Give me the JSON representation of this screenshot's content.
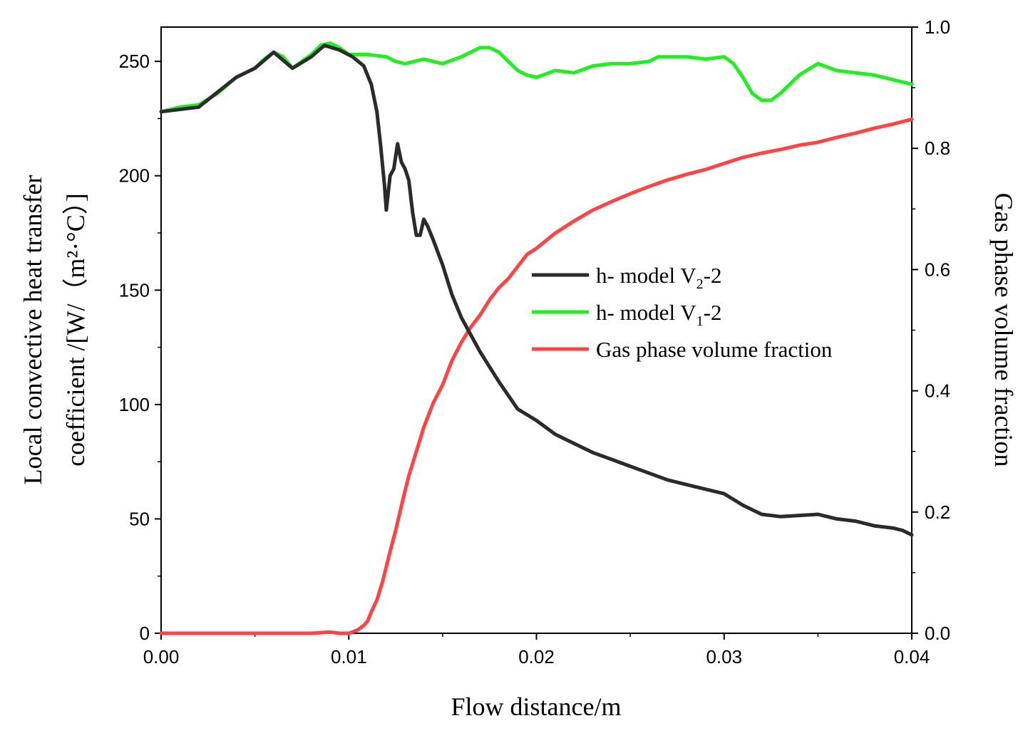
{
  "chart_data": {
    "type": "line",
    "title": "",
    "xlabel": "Flow distance/m",
    "ylabel_left_line1": "Local convective heat transfer",
    "ylabel_left_line2": "coefficient /[W/（m²·°C）]",
    "ylabel_right": "Gas phase volume fraction",
    "xlim": [
      0,
      0.04
    ],
    "ylim_left": [
      0,
      265
    ],
    "ylim_right": [
      0,
      1.0
    ],
    "x_ticks": [
      0,
      0.01,
      0.02,
      0.03,
      0.04
    ],
    "x_tick_labels": [
      "0.00",
      "0.01",
      "0.02",
      "0.03",
      "0.04"
    ],
    "y_left_ticks": [
      0,
      50,
      100,
      150,
      200,
      250
    ],
    "y_left_tick_labels": [
      "0",
      "50",
      "100",
      "150",
      "200",
      "250"
    ],
    "y_right_ticks": [
      0,
      0.2,
      0.4,
      0.6,
      0.8,
      1.0
    ],
    "y_right_tick_labels": [
      "0.0",
      "0.2",
      "0.4",
      "0.6",
      "0.8",
      "1.0"
    ],
    "legend_position": "center-right",
    "series": [
      {
        "name": "h- model V2-2",
        "legend_main": "h- model V",
        "legend_sub": "2",
        "legend_tail": "-2",
        "axis": "left",
        "color": "#2b2b2b",
        "x": [
          0.0,
          0.002,
          0.004,
          0.005,
          0.006,
          0.007,
          0.008,
          0.0087,
          0.0095,
          0.0102,
          0.0108,
          0.0112,
          0.0115,
          0.0117,
          0.0119,
          0.012,
          0.0122,
          0.0124,
          0.0126,
          0.0128,
          0.013,
          0.0132,
          0.0134,
          0.0136,
          0.0138,
          0.014,
          0.0142,
          0.0145,
          0.015,
          0.0155,
          0.016,
          0.017,
          0.018,
          0.019,
          0.02,
          0.021,
          0.022,
          0.023,
          0.024,
          0.025,
          0.026,
          0.027,
          0.028,
          0.029,
          0.03,
          0.031,
          0.032,
          0.033,
          0.034,
          0.035,
          0.036,
          0.037,
          0.038,
          0.039,
          0.0395,
          0.04
        ],
        "y": [
          228,
          230,
          243,
          247,
          254,
          247,
          252,
          257,
          255,
          252,
          248,
          240,
          228,
          213,
          196,
          185,
          200,
          203,
          214,
          206,
          203,
          198,
          184,
          174,
          174,
          181,
          178,
          172,
          161,
          148,
          138,
          123,
          110,
          98,
          93,
          87,
          83,
          79,
          76,
          73,
          70,
          67,
          65,
          63,
          61,
          56,
          52,
          51,
          51.5,
          52,
          50,
          49,
          47,
          46,
          45,
          43
        ]
      },
      {
        "name": "h- model V1-2",
        "legend_main": "h- model V",
        "legend_sub": "1",
        "legend_tail": "-2",
        "axis": "left",
        "color": "#22ee22",
        "x": [
          0.0,
          0.001,
          0.002,
          0.003,
          0.004,
          0.005,
          0.0055,
          0.006,
          0.0065,
          0.007,
          0.0075,
          0.008,
          0.0085,
          0.009,
          0.0095,
          0.01,
          0.011,
          0.012,
          0.0125,
          0.013,
          0.0135,
          0.014,
          0.015,
          0.016,
          0.0165,
          0.017,
          0.0175,
          0.018,
          0.0185,
          0.019,
          0.0195,
          0.02,
          0.021,
          0.022,
          0.023,
          0.024,
          0.025,
          0.026,
          0.0265,
          0.027,
          0.028,
          0.029,
          0.03,
          0.0305,
          0.031,
          0.0315,
          0.032,
          0.0325,
          0.033,
          0.034,
          0.035,
          0.036,
          0.037,
          0.038,
          0.039,
          0.04
        ],
        "y": [
          228,
          230,
          231,
          236,
          243,
          247,
          251,
          254,
          252,
          247,
          250,
          253,
          257,
          258,
          256,
          253,
          253,
          252,
          250,
          249,
          250,
          251,
          249,
          252,
          254,
          256,
          256,
          254,
          250,
          246,
          244,
          243,
          246,
          245,
          248,
          249,
          249,
          250,
          252,
          252,
          252,
          251,
          252,
          249,
          243,
          236,
          233,
          233,
          236,
          244,
          249,
          246,
          245,
          244,
          242,
          240
        ]
      },
      {
        "name": "Gas phase volume fraction",
        "legend_main": "Gas phase volume fraction",
        "legend_sub": "",
        "legend_tail": "",
        "axis": "right",
        "color": "#ff4444",
        "x": [
          0.0,
          0.005,
          0.008,
          0.009,
          0.0095,
          0.01,
          0.0102,
          0.0105,
          0.0108,
          0.011,
          0.0112,
          0.0115,
          0.0118,
          0.012,
          0.0122,
          0.0125,
          0.0128,
          0.013,
          0.0132,
          0.0135,
          0.0138,
          0.014,
          0.0145,
          0.015,
          0.0155,
          0.016,
          0.0165,
          0.017,
          0.0175,
          0.018,
          0.0185,
          0.019,
          0.0195,
          0.02,
          0.021,
          0.022,
          0.023,
          0.024,
          0.025,
          0.026,
          0.027,
          0.028,
          0.029,
          0.03,
          0.031,
          0.032,
          0.033,
          0.034,
          0.035,
          0.036,
          0.037,
          0.038,
          0.039,
          0.04
        ],
        "y": [
          0.0,
          0.0,
          0.0,
          0.002,
          0.0,
          0.0,
          0.002,
          0.006,
          0.013,
          0.02,
          0.035,
          0.055,
          0.085,
          0.11,
          0.135,
          0.17,
          0.21,
          0.235,
          0.26,
          0.29,
          0.32,
          0.34,
          0.38,
          0.41,
          0.45,
          0.48,
          0.505,
          0.525,
          0.55,
          0.57,
          0.585,
          0.605,
          0.625,
          0.635,
          0.66,
          0.68,
          0.698,
          0.712,
          0.725,
          0.737,
          0.748,
          0.757,
          0.765,
          0.775,
          0.785,
          0.792,
          0.798,
          0.805,
          0.81,
          0.818,
          0.825,
          0.833,
          0.84,
          0.848
        ]
      }
    ]
  }
}
